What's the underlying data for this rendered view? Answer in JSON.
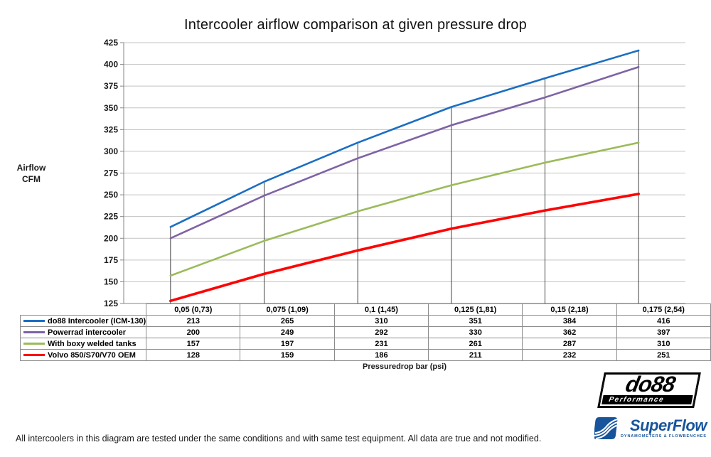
{
  "title": "Intercooler airflow comparison at given pressure drop",
  "y_axis": {
    "label_line1": "Airflow",
    "label_line2": "CFM"
  },
  "x_axis": {
    "label": "Pressuredrop bar (psi)"
  },
  "chart_data": {
    "type": "line",
    "title": "Intercooler airflow comparison at given pressure drop",
    "xlabel": "Pressuredrop bar (psi)",
    "ylabel": "Airflow CFM",
    "categories": [
      "0,05 (0,73)",
      "0,075 (1,09)",
      "0,1 (1,45)",
      "0,125 (1,81)",
      "0,15 (2,18)",
      "0,175 (2,54)"
    ],
    "series": [
      {
        "name": "do88 Intercooler (ICM-130)",
        "color": "#1b6ec2",
        "values": [
          213,
          265,
          310,
          351,
          384,
          416
        ]
      },
      {
        "name": "Powerrad intercooler",
        "color": "#7e63a5",
        "values": [
          200,
          249,
          292,
          330,
          362,
          397
        ]
      },
      {
        "name": "With boxy welded tanks",
        "color": "#9bbb59",
        "values": [
          157,
          197,
          231,
          261,
          287,
          310
        ]
      },
      {
        "name": "Volvo 850/S70/V70 OEM",
        "color": "#ff0000",
        "values": [
          128,
          159,
          186,
          211,
          232,
          251
        ]
      }
    ],
    "ylim": [
      125,
      425
    ],
    "ytick_step": 25,
    "grid": "horizontal",
    "drop_lines": true,
    "legend_position": "table-left",
    "colors": {
      "gridline": "#c3c3c3",
      "axis": "#868686",
      "drop_line": "#424242",
      "table_border": "#8c8c8c"
    }
  },
  "logos": {
    "do88": {
      "text": "do88",
      "subtext": "Performance"
    },
    "superflow": {
      "text": "SuperFlow",
      "subtext": "DYNAMOMETERS & FLOWBENCHES"
    }
  },
  "footer": "All intercoolers in this diagram are tested under the same conditions and with same test equipment. All data are true and not modified."
}
